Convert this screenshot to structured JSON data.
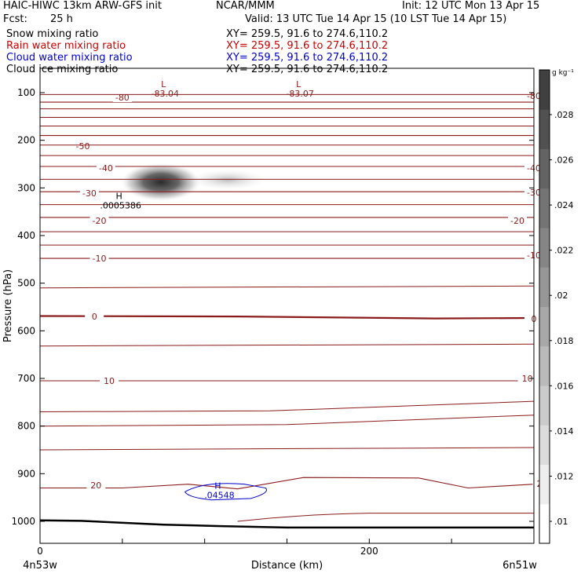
{
  "header": {
    "title_left": "HAIC-HIWC 13km ARW-GFS init",
    "title_mid": "NCAR/MMM",
    "init": "Init: 12 UTC Mon 13 Apr 15",
    "fcst_label": "Fcst:",
    "fcst_value": "25 h",
    "valid": "Valid: 13 UTC Tue 14 Apr 15 (10 LST Tue 14 Apr 15)"
  },
  "fields": [
    {
      "name": "Snow mixing ratio",
      "xy": "XY= 259.5, 91.6 to 274.6,110.2",
      "color": "#000000"
    },
    {
      "name": "Rain water mixing ratio",
      "xy": "XY= 259.5, 91.6 to 274.6,110.2",
      "color": "#cc0000"
    },
    {
      "name": "Cloud water mixing ratio",
      "xy": "XY= 259.5, 91.6 to 274.6,110.2",
      "color": "#0000cc"
    },
    {
      "name": "Cloud ice mixing ratio",
      "xy": "XY= 259.5, 91.6 to 274.6,110.2",
      "color": "#000000"
    }
  ],
  "colors": {
    "temperature_contour": "#8b1a1a",
    "cloud_water_contour": "#0000cc",
    "terrain": "#000000"
  },
  "chart_data": {
    "type": "cross-section contour",
    "xlabel": "Distance (km)",
    "ylabel": "Pressure (hPa)",
    "x_start_label": "4n53w",
    "x_end_label": "6n51w",
    "xlim": [
      0,
      300
    ],
    "ylim": [
      1050,
      70
    ],
    "y_ticks": [
      100,
      200,
      300,
      400,
      500,
      600,
      700,
      800,
      900,
      1000
    ],
    "x_tick_labels": [
      {
        "value": 0,
        "label": "0"
      },
      {
        "value": 200,
        "label": "200"
      }
    ],
    "colorbar": {
      "unit": "g kg⁻¹",
      "ticks": [
        ".01",
        ".012",
        ".014",
        ".016",
        ".018",
        ".02",
        ".022",
        ".024",
        ".026",
        ".028"
      ]
    },
    "temperature_contours": [
      {
        "value": -80,
        "label": "-80",
        "points": [
          [
            0,
            120
          ],
          [
            300,
            120
          ]
        ]
      },
      {
        "value": -50,
        "label": "-50",
        "points": [
          [
            0,
            190
          ],
          [
            300,
            190
          ]
        ]
      },
      {
        "value": -40,
        "label": "-40",
        "points": [
          [
            0,
            255
          ],
          [
            300,
            255
          ]
        ]
      },
      {
        "value": -30,
        "label": "-30",
        "points": [
          [
            0,
            308
          ],
          [
            300,
            308
          ]
        ]
      },
      {
        "value": -20,
        "label": "-20",
        "points": [
          [
            0,
            362
          ],
          [
            300,
            362
          ]
        ]
      },
      {
        "value": -10,
        "label": "-10",
        "points": [
          [
            0,
            448
          ],
          [
            300,
            448
          ]
        ]
      },
      {
        "value": 0,
        "label": "0",
        "points": [
          [
            0,
            569
          ],
          [
            120,
            570
          ],
          [
            240,
            574
          ],
          [
            300,
            573
          ]
        ]
      },
      {
        "value": 10,
        "label": "10",
        "points": [
          [
            0,
            705
          ],
          [
            300,
            705
          ]
        ]
      },
      {
        "value": 20,
        "label": "20",
        "points": [
          [
            0,
            930
          ],
          [
            50,
            930
          ],
          [
            90,
            922
          ],
          [
            120,
            932
          ],
          [
            160,
            908
          ],
          [
            230,
            909
          ],
          [
            260,
            930
          ],
          [
            300,
            922
          ]
        ]
      }
    ],
    "extrema": [
      {
        "type": "L",
        "value": "-83.04",
        "x": 75,
        "p": 95,
        "color": "#8b1a1a"
      },
      {
        "type": "L",
        "value": "-83.07",
        "x": 157,
        "p": 95,
        "color": "#8b1a1a"
      },
      {
        "type": "H",
        "value": ".0005386",
        "x": 48,
        "p": 330,
        "color": "#000000"
      },
      {
        "type": "H",
        "value": ".04548",
        "x": 108,
        "p": 938,
        "color": "#0000cc"
      }
    ],
    "cloud_ice_max": {
      "x": 75,
      "p": 285,
      "value": ".028"
    },
    "grid": false
  }
}
